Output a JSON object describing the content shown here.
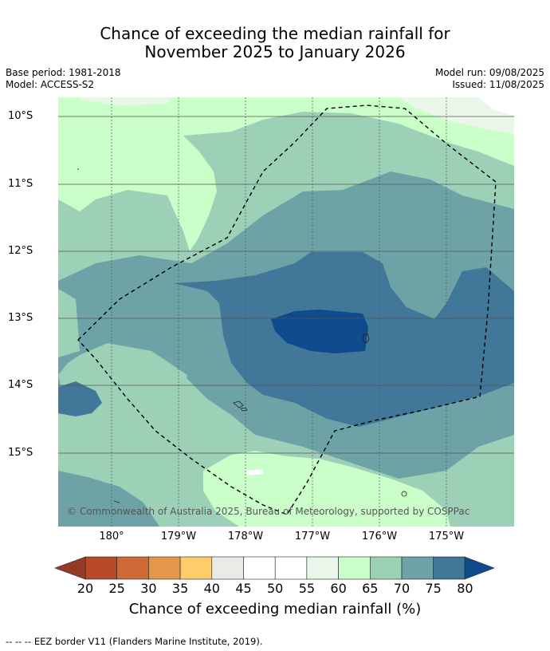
{
  "title_line1": "Chance of exceeding the median rainfall for",
  "title_line2": "November 2025 to January 2026",
  "base_period": "Base period: 1981-2018",
  "model": "Model: ACCESS-S2",
  "model_run": "Model run: 09/08/2025",
  "issued": "Issued: 11/08/2025",
  "lat_labels": [
    "10°S",
    "11°S",
    "12°S",
    "13°S",
    "14°S",
    "15°S"
  ],
  "lon_labels": [
    "180°",
    "179°W",
    "178°W",
    "177°W",
    "176°W",
    "175°W"
  ],
  "copyright": "© Commonwealth of Australia 2025, Bureau of Meteorology, supported by COSPPac",
  "colorbar": {
    "ticks": [
      "20",
      "25",
      "30",
      "35",
      "40",
      "45",
      "50",
      "55",
      "60",
      "65",
      "70",
      "75",
      "80"
    ],
    "colors": [
      "#b5492a",
      "#cd6a35",
      "#e3974a",
      "#fecc6a",
      "#ebebe6",
      "#ffffff",
      "#ffffff",
      "#e9f6e9",
      "#caffca",
      "#9dd1b7",
      "#6da3a7",
      "#41789a"
    ],
    "extend_low_color": "#963a26",
    "extend_high_color": "#0f4a8c",
    "label": "Chance of exceeding median rainfall (%)"
  },
  "footnote": "--  --  -- EEZ border V11 (Flanders Marine Institute, 2019)."
}
